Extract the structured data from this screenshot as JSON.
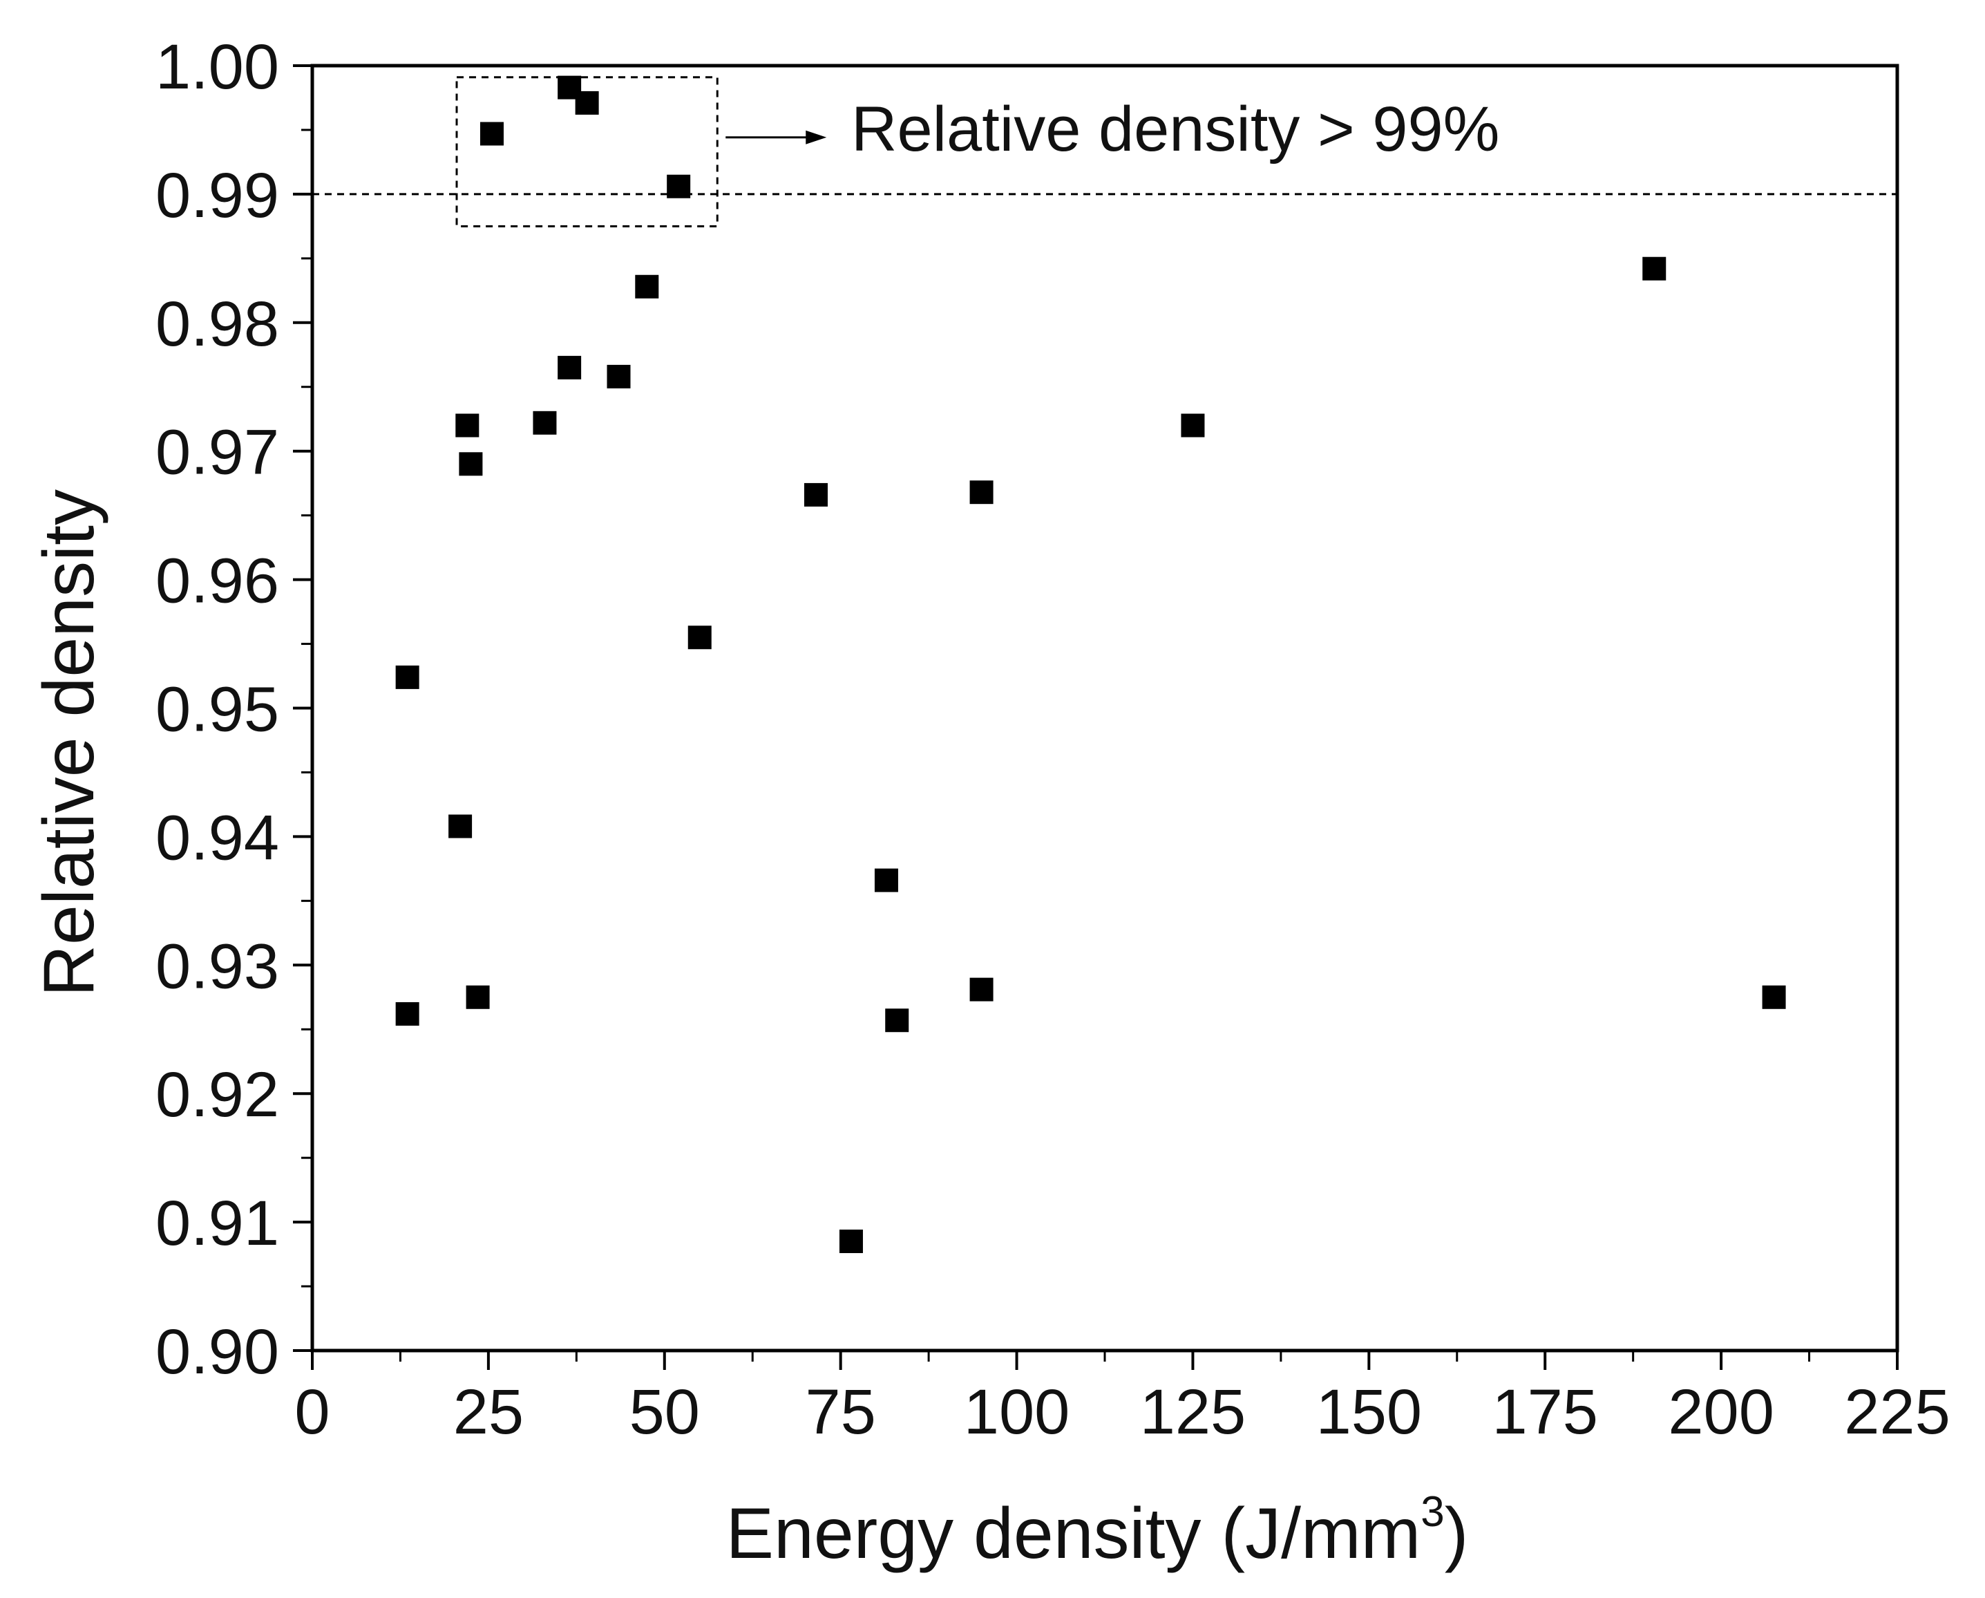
{
  "chart_data": {
    "type": "scatter",
    "title": "",
    "xlabel": "Energy density (J/mm",
    "xlabel_superscript": "3",
    "xlabel_close": ")",
    "ylabel": "Relative density",
    "xlim": [
      0,
      225
    ],
    "ylim": [
      0.9,
      1.0
    ],
    "x_ticks": [
      0,
      25,
      50,
      75,
      100,
      125,
      150,
      175,
      200,
      225
    ],
    "x_tick_labels": [
      "0",
      "25",
      "50",
      "75",
      "100",
      "125",
      "150",
      "175",
      "200",
      "225"
    ],
    "y_ticks": [
      0.9,
      0.91,
      0.92,
      0.93,
      0.94,
      0.95,
      0.96,
      0.97,
      0.98,
      0.99,
      1.0
    ],
    "y_tick_labels": [
      "0.90",
      "0.91",
      "0.92",
      "0.93",
      "0.94",
      "0.95",
      "0.96",
      "0.97",
      "0.98",
      "0.99",
      "1.00"
    ],
    "grid": false,
    "marker": "square",
    "marker_color": "#000000",
    "series": [
      {
        "name": "Relative density",
        "points": [
          {
            "x": 13.5,
            "y": 0.9524
          },
          {
            "x": 13.5,
            "y": 0.9262
          },
          {
            "x": 21.0,
            "y": 0.9408
          },
          {
            "x": 22.0,
            "y": 0.972
          },
          {
            "x": 22.5,
            "y": 0.969
          },
          {
            "x": 23.5,
            "y": 0.9275
          },
          {
            "x": 25.5,
            "y": 0.9947
          },
          {
            "x": 33.0,
            "y": 0.9722
          },
          {
            "x": 36.5,
            "y": 0.9983
          },
          {
            "x": 36.5,
            "y": 0.9765
          },
          {
            "x": 39.0,
            "y": 0.9971
          },
          {
            "x": 43.5,
            "y": 0.9758
          },
          {
            "x": 47.5,
            "y": 0.9828
          },
          {
            "x": 52.0,
            "y": 0.9906
          },
          {
            "x": 55.0,
            "y": 0.9555
          },
          {
            "x": 71.5,
            "y": 0.9666
          },
          {
            "x": 76.5,
            "y": 0.9085
          },
          {
            "x": 81.5,
            "y": 0.9366
          },
          {
            "x": 83.0,
            "y": 0.9257
          },
          {
            "x": 95.0,
            "y": 0.9668
          },
          {
            "x": 95.0,
            "y": 0.9281
          },
          {
            "x": 125.0,
            "y": 0.972
          },
          {
            "x": 190.5,
            "y": 0.9842
          },
          {
            "x": 207.5,
            "y": 0.9275
          }
        ]
      }
    ],
    "reference_line": {
      "y": 0.99,
      "style": "dashed"
    },
    "highlight_box": {
      "x_range": [
        20.5,
        57.5
      ],
      "y_range": [
        0.9875,
        0.9991
      ],
      "style": "dashed"
    },
    "annotations": [
      {
        "text": "Relative density > 99%",
        "points_to": "highlight_box"
      }
    ]
  }
}
